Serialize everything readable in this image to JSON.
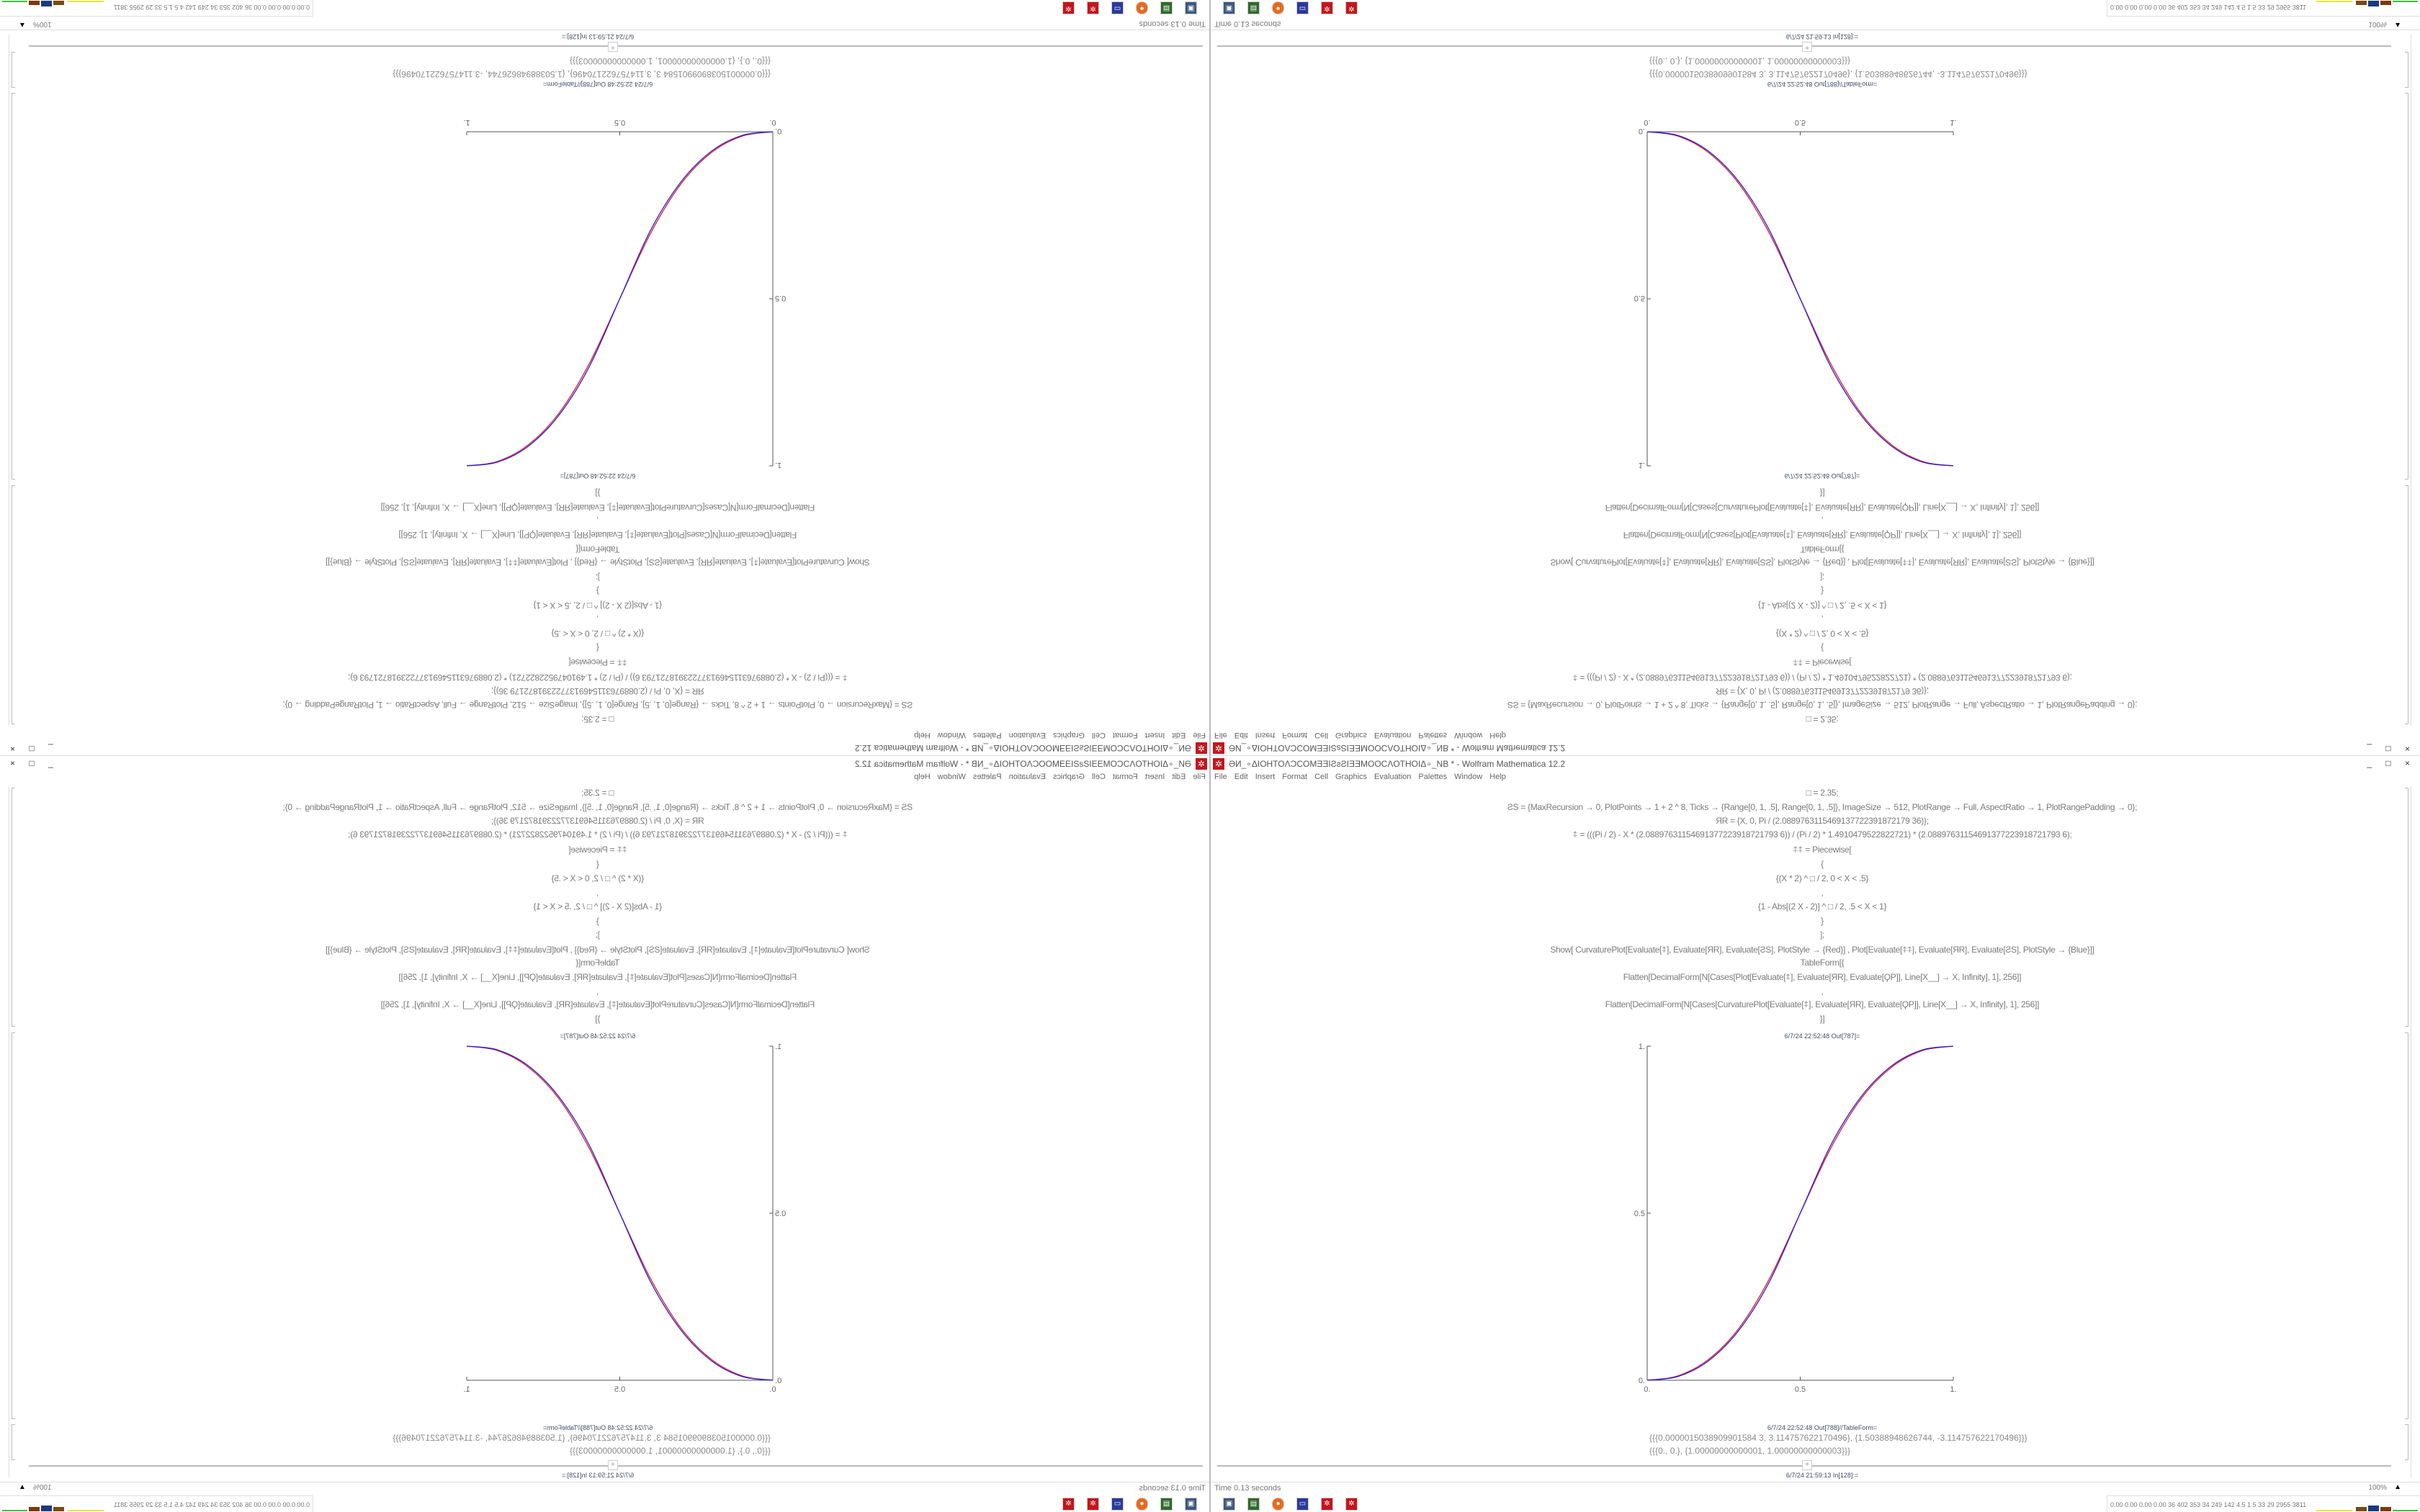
{
  "window": {
    "title": "ƏИ_∘ΔIOHTOΛƆCOMƎƎIƧƨƧIƎƎMOOCΛOTHOIΔ∘_NB * - Wolfram Mathematica 12.2",
    "controls": "_ □ ×",
    "app_icon": "mathematica-gear-icon"
  },
  "menu": [
    "File",
    "Edit",
    "Insert",
    "Format",
    "Cell",
    "Graphics",
    "Evaluation",
    "Palettes",
    "Window",
    "Help"
  ],
  "code": [
    "□ = 2.35;",
    "ƧS = {MaxRecursion → 0, PlotPoints → 1 + 2 ^ 8, Ticks → {Range[0, 1, .5], Range[0, 1, .5]}, ImageSize → 512, PlotRange → Full, AspectRatio → 1, PlotRangePadding → 0};",
    "ЯR = {X, 0, Pi / (2.0889763115469137722391872179 36)};",
    "⍏ = (((Pi / 2) - X * (2.08897631154691377223918721793 6)) / (Pi / 2) * 1.4910479522822721) * (2.08897631154691377223918721793 6);",
    "⍏⍏ = Piecewise[",
    "{",
    "{(X * 2) ^ □ / 2, 0 < X < .5}",
    ",",
    "{1 - Abs[(2 X - 2)] ^ □ / 2, .5 < X < 1}",
    "}",
    "];",
    "Show[   CurvaturePlot[Evaluate[⍏], Evaluate[ЯR], Evaluate[ƧS], PlotStyle → {Red}]   ,   Plot[Evaluate[⍏⍏], Evaluate[ЯR], Evaluate[ƧS],  PlotStyle → {Blue}]]",
    "TableForm[{",
    "Flatten[DecimalForm[N[Cases[Plot[Evaluate[⍏], Evaluate[ЯR], Evaluate[ϘP]], Line[X__] → X, Infinity], 1], 256]]",
    ",",
    "Flatten[DecimalForm[N[Cases[CurvaturePlot[Evaluate[⍏], Evaluate[ЯR], Evaluate[ϘP]], Line[X__] → X, Infinity], 1], 256]]",
    "}]"
  ],
  "out_plot_label": "6/7/24 22:52:48 Out[787]=",
  "out_table_label": "6/7/24 22:52:48 Out[788]//TableForm=",
  "out_table": [
    "{{{0.0000015038909901584 3, 3.114757622170496}, {1.50388948626744, -3.114757622170496}}}",
    "{{{0., 0.}, {1.00000000000001, 1.00000000000003}}}"
  ],
  "in_label": "6/7/24 21:59:13 In[128]:=",
  "status": {
    "time": "Time 0.13 seconds",
    "zoom": "100%"
  },
  "taskbar": {
    "icons": [
      "computer-icon",
      "app-green-icon",
      "firefox-icon",
      "save-disk-icon",
      "mathematica-icon",
      "mathematica-icon"
    ],
    "tray_text": "0.00 0.00 0.00 0.00  36  402  353  34  249  142  4.5  1.5  33  29  2955 3811"
  },
  "chart_data": {
    "type": "line",
    "xlim": [
      0,
      1
    ],
    "ylim": [
      0,
      1
    ],
    "x_ticks": [
      "0.",
      "0.5",
      "1."
    ],
    "y_ticks": [
      "0.",
      "0.5",
      "1."
    ],
    "grid": false,
    "x": [
      0,
      0.1,
      0.2,
      0.3,
      0.4,
      0.5,
      0.6,
      0.7,
      0.8,
      0.9,
      1
    ],
    "series": [
      {
        "color": "#e0201c",
        "values": [
          0,
          0.013,
          0.062,
          0.156,
          0.305,
          0.5,
          0.695,
          0.844,
          0.938,
          0.987,
          1
        ]
      },
      {
        "color": "#2a1de0",
        "values": [
          0,
          0.011,
          0.058,
          0.15,
          0.296,
          0.5,
          0.704,
          0.85,
          0.942,
          0.989,
          1
        ]
      }
    ]
  }
}
